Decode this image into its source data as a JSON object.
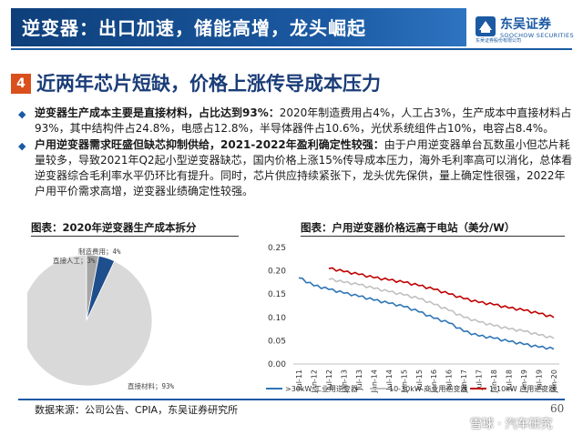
{
  "banner": {
    "title": "逆变器：出口加速，储能高增，龙头崛起"
  },
  "logo": {
    "name_cn": "东吴证券",
    "name_en": "SOOCHOW SECURITIES",
    "tagline": "东吴证券股份有限公司"
  },
  "section": {
    "number": "4",
    "title": "近两年芯片短缺，价格上涨传导成本压力"
  },
  "bullets": [
    {
      "bold": "逆变器生产成本主要是直接材料，占比达到93%：",
      "text": "2020年制造费用占4%，人工占3%，生产成本中直接材料占93%，其中结构件占24.8%，电感占12.8%，半导体器件占10.6%，光伏系统组件占10%，电容占8.4%。"
    },
    {
      "bold": "户用逆变器需求旺盛但缺芯抑制供给，2021-2022年盈利确定性较强：",
      "text": "由于户用逆变器单台瓦数虽小但芯片耗量较多，导致2021年Q2起小型逆变器缺芯，国内价格上涨15%传导成本压力，海外毛利率高可以消化，总体看逆变器综合毛利率水平仍环比有提升。同时，芯片供应持续紧张下，龙头优先保供，量上确定性很强，2022年户用平价需求高增，逆变器业绩确定性较强。"
    }
  ],
  "pie_caption": "图表：2020年逆变器生产成本拆分",
  "line_caption": "图表：户用逆变器价格远高于电站（美分/W）",
  "pie": {
    "type": "pie",
    "slices": [
      {
        "label": "直接材料；93%",
        "value": 93,
        "color": "#d9d9d9"
      },
      {
        "label": "直接人工；3%",
        "value": 3,
        "color": "#a6a6a6"
      },
      {
        "label": "制造费用；4%",
        "value": 4,
        "color": "#1f4e8c"
      }
    ]
  },
  "chart_data": {
    "type": "line",
    "title": "户用逆变器价格远高于电站（美分/W）",
    "ylim": [
      0,
      0.25
    ],
    "yticks": [
      "0.00",
      "0.05",
      "0.10",
      "0.15",
      "0.20",
      "0.25"
    ],
    "xticks": [
      "Jul-11",
      "Jan-12",
      "Jul-12",
      "Jan-13",
      "Jul-13",
      "Jan-14",
      "Jul-14",
      "Jan-15",
      "Jul-15",
      "Jan-16",
      "Jul-16",
      "Jan-17",
      "Jul-17",
      "Jan-18",
      "Jul-18",
      "Jan-19",
      "Jul-19",
      "Jan-20"
    ],
    "series": [
      {
        "name": ">30kW 工业用逆变器",
        "color": "#2e75b6",
        "values": [
          0.185,
          0.168,
          0.16,
          0.152,
          0.145,
          0.137,
          0.13,
          0.123,
          0.112,
          0.098,
          0.088,
          0.07,
          0.06,
          0.055,
          0.048,
          0.042,
          0.036,
          0.032
        ]
      },
      {
        "name": "10-30kW 商业用逆变器",
        "color": "#c0c0c0",
        "values": [
          null,
          null,
          0.182,
          0.175,
          0.17,
          0.162,
          0.155,
          0.148,
          0.14,
          0.128,
          0.115,
          0.1,
          0.09,
          0.082,
          0.075,
          0.07,
          0.062,
          0.055
        ]
      },
      {
        "name": "1-10kW 户用逆变器",
        "color": "#c00000",
        "values": [
          null,
          null,
          0.205,
          0.198,
          0.192,
          0.185,
          0.18,
          0.175,
          0.168,
          0.16,
          0.15,
          0.14,
          0.132,
          0.127,
          0.12,
          0.115,
          0.108,
          0.1
        ]
      }
    ]
  },
  "footer": {
    "source": "数据来源：公司公告、CPIA，东吴证券研究所",
    "page": "60",
    "watermark": "雪球 · 汽车研究"
  }
}
